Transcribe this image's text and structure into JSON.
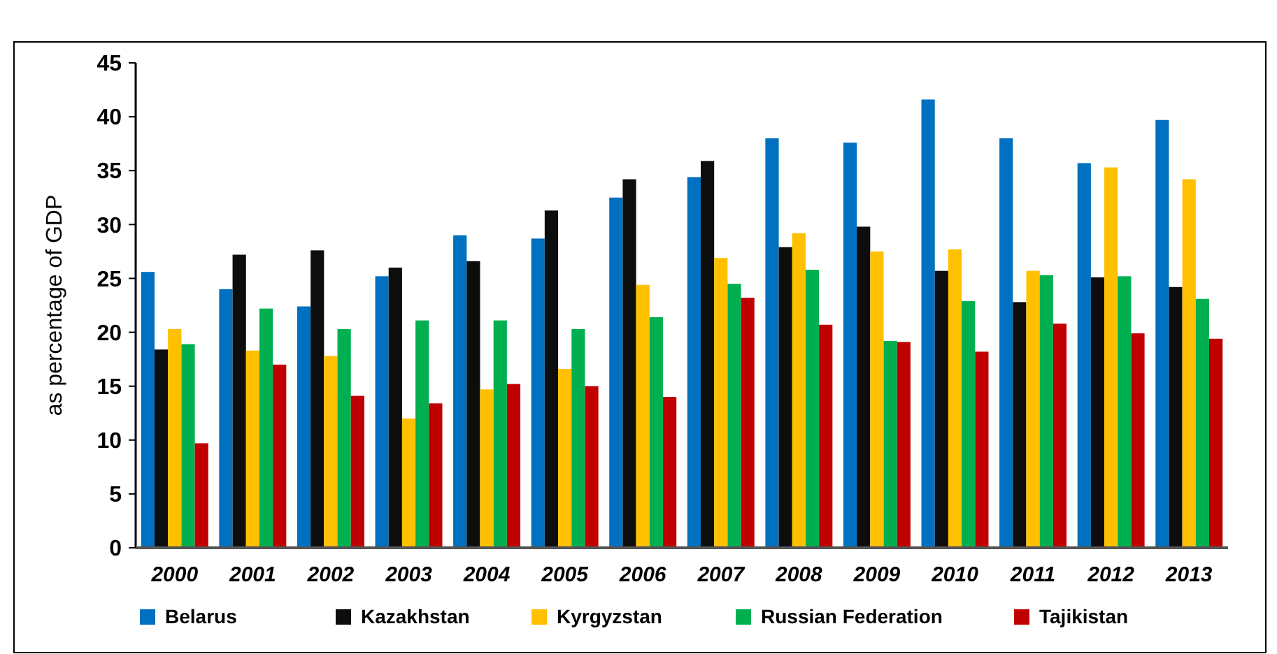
{
  "chart_data": {
    "type": "bar",
    "ylabel": "as percentage of GDP",
    "categories": [
      "2000",
      "2001",
      "2002",
      "2003",
      "2004",
      "2005",
      "2006",
      "2007",
      "2008",
      "2009",
      "2010",
      "2011",
      "2012",
      "2013"
    ],
    "ylim": [
      0,
      45
    ],
    "yticks": [
      0,
      5,
      10,
      15,
      20,
      25,
      30,
      35,
      40,
      45
    ],
    "grid": false,
    "legend": "bottom",
    "series": [
      {
        "name": "Belarus",
        "color": "#0070c0",
        "values": [
          25.6,
          24,
          22.4,
          25.2,
          29,
          28.7,
          32.5,
          34.4,
          38,
          37.6,
          41.6,
          38,
          35.7,
          39.7
        ]
      },
      {
        "name": "Kazakhstan",
        "color": "#0d0d0d",
        "values": [
          18.4,
          27.2,
          27.6,
          26,
          26.6,
          31.3,
          34.2,
          35.9,
          27.9,
          29.8,
          25.7,
          22.8,
          25.1,
          24.2
        ]
      },
      {
        "name": "Kyrgyzstan",
        "color": "#ffc000",
        "values": [
          20.3,
          18.3,
          17.8,
          12,
          14.7,
          16.6,
          24.4,
          26.9,
          29.2,
          27.5,
          27.7,
          25.7,
          35.3,
          34.2
        ]
      },
      {
        "name": "Russian Federation",
        "color": "#00b050",
        "values": [
          18.9,
          22.2,
          20.3,
          21.1,
          21.1,
          20.3,
          21.4,
          24.5,
          25.8,
          19.2,
          22.9,
          25.3,
          25.2,
          23.1
        ]
      },
      {
        "name": "Tajikistan",
        "color": "#c00000",
        "values": [
          9.7,
          17,
          14.1,
          13.4,
          15.2,
          15,
          14,
          23.2,
          20.7,
          19.1,
          18.2,
          20.8,
          19.9,
          19.4
        ]
      }
    ]
  }
}
